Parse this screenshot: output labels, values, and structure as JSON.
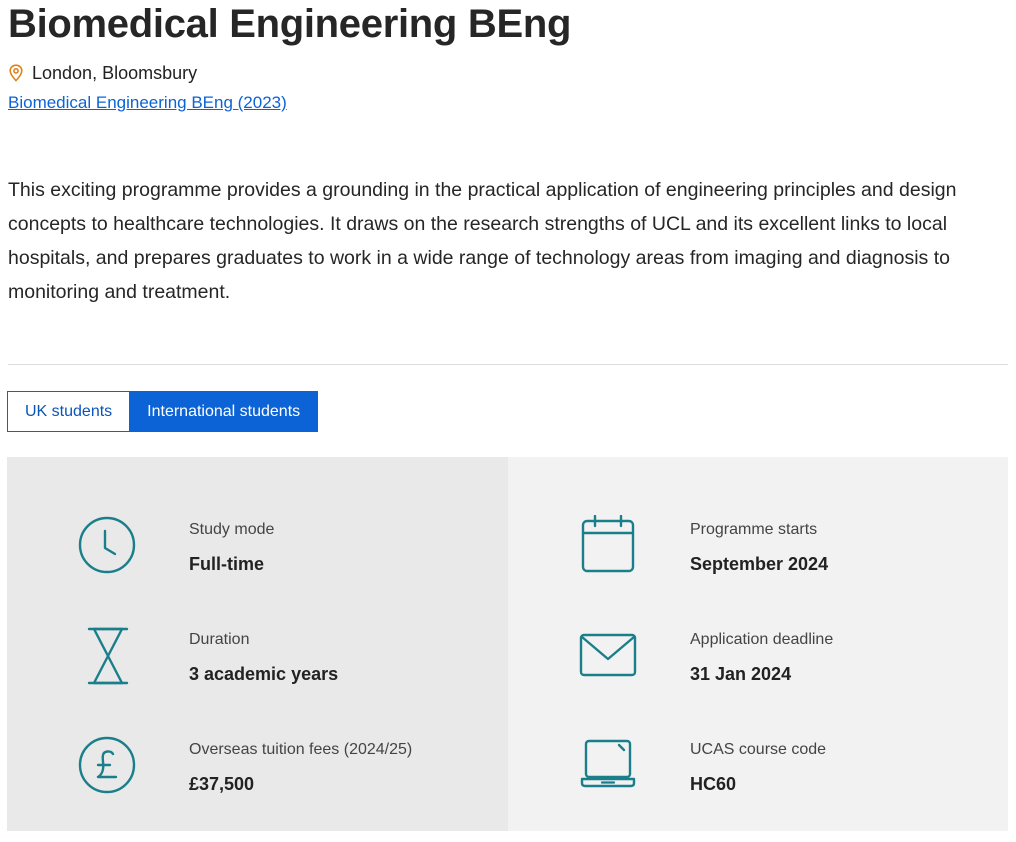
{
  "header": {
    "title": "Biomedical Engineering BEng",
    "location": "London, Bloomsbury",
    "programme_link": "Biomedical Engineering BEng (2023)"
  },
  "intro": "This exciting programme provides a grounding in the practical application of engineering principles and design concepts to healthcare technologies. It draws on the research strengths of UCL and its excellent links to local hospitals, and prepares graduates to work in a wide range of technology areas from imaging and diagnosis to monitoring and treatment.",
  "tabs": [
    {
      "label": "UK students",
      "active": false
    },
    {
      "label": "International students",
      "active": true
    }
  ],
  "facts": {
    "left": [
      {
        "icon": "clock-icon",
        "label": "Study mode",
        "value": "Full-time"
      },
      {
        "icon": "hourglass-icon",
        "label": "Duration",
        "value": "3 academic years"
      },
      {
        "icon": "pound-icon",
        "label": "Overseas tuition fees (2024/25)",
        "value": "£37,500"
      }
    ],
    "right": [
      {
        "icon": "calendar-icon",
        "label": "Programme starts",
        "value": "September 2024"
      },
      {
        "icon": "envelope-icon",
        "label": "Application deadline",
        "value": "31 Jan 2024"
      },
      {
        "icon": "laptop-icon",
        "label": "UCAS course code",
        "value": "HC60"
      }
    ]
  },
  "colors": {
    "accent": "#0b63d6",
    "icon": "#1a7f8a",
    "location_pin": "#e0841a",
    "panel_left": "#e9e9e9",
    "panel_right": "#f2f2f2"
  }
}
